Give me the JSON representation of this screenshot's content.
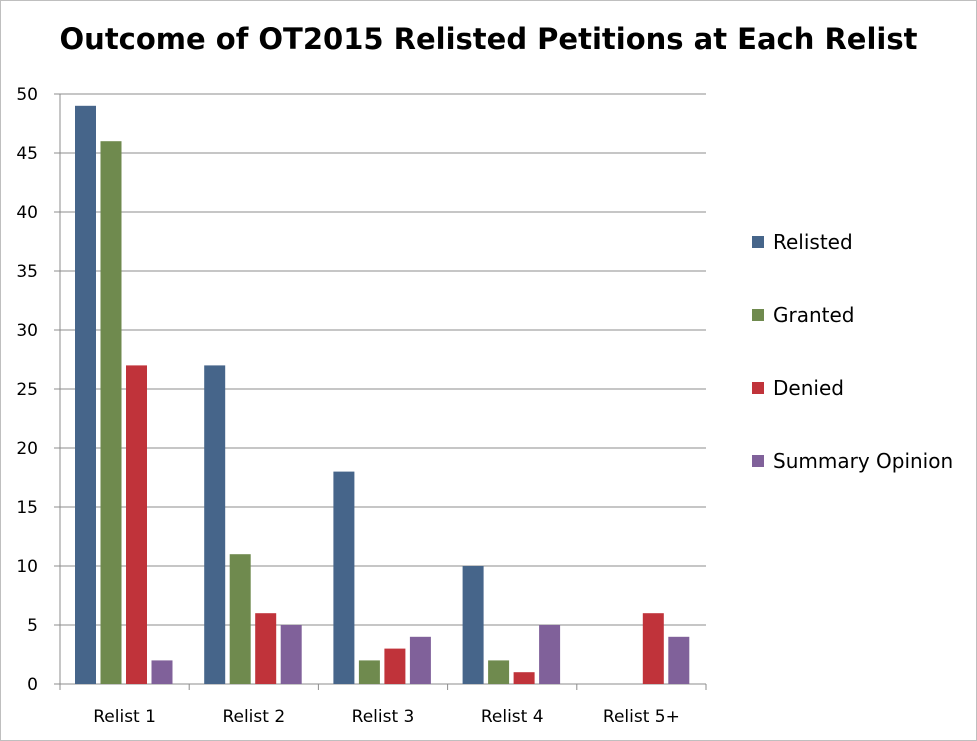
{
  "chart_data": {
    "type": "bar",
    "title": "Outcome of OT2015 Relisted Petitions at Each Relist",
    "xlabel": "",
    "ylabel": "",
    "categories": [
      "Relist 1",
      "Relist 2",
      "Relist 3",
      "Relist 4",
      "Relist 5+"
    ],
    "series": [
      {
        "name": "Relisted",
        "color": "#46658a",
        "values": [
          49,
          27,
          18,
          10,
          0
        ]
      },
      {
        "name": "Granted",
        "color": "#6f8a4e",
        "values": [
          46,
          11,
          2,
          2,
          0
        ]
      },
      {
        "name": "Denied",
        "color": "#c0333a",
        "values": [
          27,
          6,
          3,
          1,
          6
        ]
      },
      {
        "name": "Summary Opinion",
        "color": "#80619a",
        "values": [
          2,
          5,
          4,
          5,
          4
        ]
      }
    ],
    "ylim": [
      0,
      50
    ],
    "yticks": [
      0,
      5,
      10,
      15,
      20,
      25,
      30,
      35,
      40,
      45,
      50
    ],
    "grid": true,
    "legend_position": "right"
  }
}
